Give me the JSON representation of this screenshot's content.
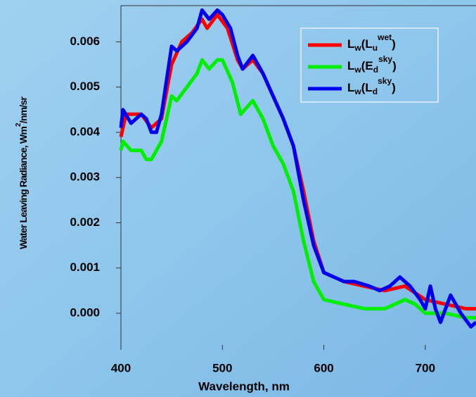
{
  "chart_data": {
    "type": "line",
    "xlabel": "Wavelength, nm",
    "ylabel": "Water Leaving Radiance, Wm2/nm/sr",
    "xlim": [
      400,
      750
    ],
    "xticks": [
      400,
      500,
      600,
      700
    ],
    "ylim": [
      -0.0007,
      0.0068
    ],
    "yticks": [
      {
        "value": 0,
        "label": "0.000"
      },
      0.001,
      0.002,
      0.003,
      0.004,
      0.005,
      0.006
    ],
    "legend": "upper right",
    "series": [
      {
        "name": "Lw(Luwet)",
        "color": "#ff0000",
        "x": [
          400,
          405,
          420,
          430,
          440,
          450,
          460,
          470,
          480,
          485,
          495,
          505,
          515,
          520,
          530,
          540,
          550,
          560,
          570,
          580,
          590,
          600,
          610,
          620,
          640,
          660,
          680,
          700,
          720,
          740,
          750
        ],
        "values": [
          0.0039,
          0.0044,
          0.0044,
          0.0041,
          0.0043,
          0.0055,
          0.006,
          0.0062,
          0.0065,
          0.0063,
          0.0066,
          0.0063,
          0.0056,
          0.0054,
          0.0056,
          0.0053,
          0.0048,
          0.0043,
          0.0037,
          0.0027,
          0.0016,
          0.0009,
          0.0008,
          0.0007,
          0.0006,
          0.0005,
          0.0006,
          0.0003,
          0.0002,
          0.0001,
          0.0001
        ]
      },
      {
        "name": "Lw(Edsky)",
        "color": "#00ee00",
        "x": [
          400,
          402,
          410,
          420,
          425,
          430,
          440,
          450,
          455,
          465,
          475,
          480,
          487,
          495,
          500,
          510,
          518,
          530,
          540,
          550,
          560,
          570,
          580,
          590,
          600,
          620,
          640,
          660,
          670,
          680,
          690,
          700,
          720,
          740,
          750
        ],
        "values": [
          0.0036,
          0.0038,
          0.0036,
          0.0036,
          0.0034,
          0.0034,
          0.0038,
          0.0048,
          0.0047,
          0.005,
          0.0053,
          0.0056,
          0.0054,
          0.0056,
          0.0056,
          0.0051,
          0.0044,
          0.0047,
          0.0043,
          0.0037,
          0.0033,
          0.0027,
          0.0016,
          0.0007,
          0.0003,
          0.0002,
          0.0001,
          0.0001,
          0.0002,
          0.0003,
          0.0002,
          0,
          0,
          -0.0001,
          -0.0001
        ]
      },
      {
        "name": "Lw(Ldsky)",
        "color": "#0000ee",
        "x": [
          400,
          402,
          410,
          420,
          425,
          430,
          435,
          440,
          450,
          455,
          465,
          475,
          480,
          487,
          495,
          500,
          508,
          515,
          520,
          530,
          540,
          550,
          560,
          570,
          580,
          590,
          600,
          610,
          620,
          630,
          645,
          655,
          665,
          675,
          685,
          695,
          700,
          705,
          710,
          715,
          725,
          735,
          745,
          750
        ],
        "values": [
          0.0041,
          0.0045,
          0.0042,
          0.0044,
          0.0043,
          0.004,
          0.004,
          0.0044,
          0.0059,
          0.0058,
          0.006,
          0.0063,
          0.0067,
          0.0065,
          0.0067,
          0.0066,
          0.0063,
          0.0057,
          0.0054,
          0.0057,
          0.0053,
          0.0048,
          0.0043,
          0.0037,
          0.0025,
          0.0015,
          0.0009,
          0.0008,
          0.0007,
          0.0007,
          0.0006,
          0.0005,
          0.0006,
          0.0008,
          0.0006,
          0.0003,
          0.0001,
          0.0006,
          0.0001,
          -0.0002,
          0.0004,
          0,
          -0.0003,
          -0.0002
        ]
      }
    ]
  }
}
